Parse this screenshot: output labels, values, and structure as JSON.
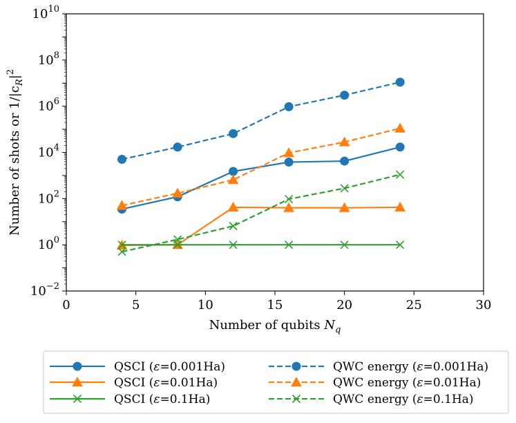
{
  "chart_data": {
    "type": "line",
    "xlabel": "Number of qubits ",
    "xlabel_symbol": "N",
    "xlabel_sub": "q",
    "ylabel": "Number of shots or 1/|c",
    "ylabel_sub": "R",
    "ylabel_tail": "|",
    "ylabel_sup": "2",
    "xlim": [
      0,
      30
    ],
    "ylim_log10": [
      -2,
      10
    ],
    "xticks": [
      0,
      5,
      10,
      15,
      20,
      25,
      30
    ],
    "xtick_labels": [
      "0",
      "5",
      "10",
      "15",
      "20",
      "25",
      "30"
    ],
    "yticks_exp": [
      -2,
      0,
      2,
      4,
      6,
      8,
      10
    ],
    "ytick_base": "10",
    "ytick_exps": [
      "−2",
      "0",
      "2",
      "4",
      "6",
      "8",
      "10"
    ],
    "legend_position": "below-plot",
    "series": [
      {
        "name": "QSCI (ε=0.001Ha)",
        "color": "#1f77b4",
        "style": "solid",
        "marker": "circle",
        "x": [
          4,
          8,
          12,
          16,
          20,
          24
        ],
        "y": [
          35,
          120,
          1500,
          3800,
          4200,
          17000
        ]
      },
      {
        "name": "QSCI (ε=0.01Ha)",
        "color": "#ff7f0e",
        "style": "solid",
        "marker": "triangle",
        "x": [
          4,
          8,
          12,
          16,
          20,
          24
        ],
        "y": [
          0.95,
          1.0,
          42,
          40,
          40,
          42
        ]
      },
      {
        "name": "QSCI (ε=0.1Ha)",
        "color": "#2ca02c",
        "style": "solid",
        "marker": "x",
        "x": [
          4,
          8,
          12,
          16,
          20,
          24
        ],
        "y": [
          1.0,
          1.0,
          1.0,
          1.0,
          1.0,
          1.0
        ]
      },
      {
        "name": "QWC energy (ε=0.001Ha)",
        "color": "#1f77b4",
        "style": "dashed",
        "marker": "circle",
        "x": [
          4,
          8,
          12,
          16,
          20,
          24
        ],
        "y": [
          5000,
          17000,
          65000,
          950000,
          3000000,
          11000000
        ]
      },
      {
        "name": "QWC energy (ε=0.01Ha)",
        "color": "#ff7f0e",
        "style": "dashed",
        "marker": "triangle",
        "x": [
          4,
          8,
          12,
          16,
          20,
          24
        ],
        "y": [
          50,
          170,
          650,
          9500,
          28000,
          110000
        ]
      },
      {
        "name": "QWC energy (ε=0.1Ha)",
        "color": "#2ca02c",
        "style": "dashed",
        "marker": "x",
        "x": [
          4,
          8,
          12,
          16,
          20,
          24
        ],
        "y": [
          0.5,
          1.7,
          6.5,
          95,
          280,
          1100
        ]
      }
    ],
    "legend": [
      {
        "prefix": "QSCI (",
        "eps": "ε",
        "suffix": "=0.001Ha)",
        "series": 0
      },
      {
        "prefix": "QWC energy (",
        "eps": "ε",
        "suffix": "=0.001Ha)",
        "series": 3
      },
      {
        "prefix": "QSCI (",
        "eps": "ε",
        "suffix": "=0.01Ha)",
        "series": 1
      },
      {
        "prefix": "QWC energy (",
        "eps": "ε",
        "suffix": "=0.01Ha)",
        "series": 4
      },
      {
        "prefix": "QSCI (",
        "eps": "ε",
        "suffix": "=0.1Ha)",
        "series": 2
      },
      {
        "prefix": "QWC energy (",
        "eps": "ε",
        "suffix": "=0.1Ha)",
        "series": 5
      }
    ]
  }
}
